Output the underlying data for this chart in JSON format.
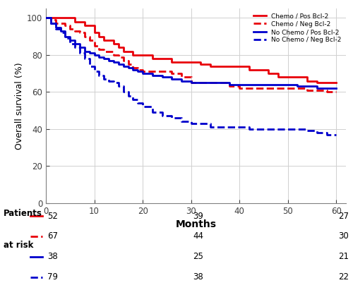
{
  "title": "",
  "xlabel": "Months",
  "ylabel": "Overall survival (%)",
  "xlim": [
    0,
    62
  ],
  "ylim": [
    0,
    105
  ],
  "xticks": [
    0,
    10,
    20,
    30,
    40,
    50,
    60
  ],
  "yticks": [
    0,
    20,
    40,
    60,
    80,
    100
  ],
  "background_color": "#ffffff",
  "grid_color": "#d0d0d0",
  "curves": [
    {
      "label": "Chemo / Pos Bcl-2",
      "color": "#e8000a",
      "linestyle": "solid",
      "linewidth": 2.0,
      "x": [
        0,
        1,
        2,
        3,
        4,
        5,
        6,
        7,
        8,
        9,
        10,
        11,
        12,
        13,
        14,
        15,
        16,
        17,
        18,
        19,
        20,
        22,
        24,
        26,
        28,
        30,
        32,
        34,
        36,
        38,
        40,
        42,
        44,
        46,
        48,
        50,
        52,
        54,
        56,
        58,
        60
      ],
      "y": [
        100,
        100,
        100,
        100,
        100,
        100,
        98,
        98,
        96,
        96,
        92,
        90,
        88,
        88,
        86,
        84,
        82,
        82,
        80,
        80,
        80,
        78,
        78,
        76,
        76,
        76,
        75,
        74,
        74,
        74,
        74,
        72,
        72,
        70,
        68,
        68,
        68,
        66,
        65,
        65,
        65
      ]
    },
    {
      "label": "Chemo / Neg Bcl-2",
      "color": "#e8000a",
      "linestyle": "dashed",
      "linewidth": 2.0,
      "x": [
        0,
        1,
        2,
        3,
        4,
        5,
        6,
        7,
        8,
        9,
        10,
        11,
        12,
        13,
        14,
        15,
        16,
        17,
        18,
        19,
        20,
        22,
        24,
        26,
        28,
        30,
        32,
        34,
        36,
        38,
        40,
        42,
        44,
        46,
        48,
        50,
        52,
        54,
        56,
        58,
        60
      ],
      "y": [
        100,
        99,
        97,
        97,
        96,
        94,
        93,
        92,
        90,
        88,
        85,
        83,
        82,
        82,
        80,
        79,
        77,
        75,
        73,
        72,
        71,
        71,
        71,
        70,
        68,
        65,
        65,
        65,
        65,
        63,
        62,
        62,
        62,
        62,
        62,
        62,
        62,
        61,
        61,
        60,
        60
      ]
    },
    {
      "label": "No Chemo / Pos Bcl-2",
      "color": "#0000cc",
      "linestyle": "solid",
      "linewidth": 2.0,
      "x": [
        0,
        1,
        2,
        3,
        4,
        5,
        6,
        7,
        8,
        9,
        10,
        11,
        12,
        13,
        14,
        15,
        16,
        17,
        18,
        19,
        20,
        22,
        24,
        26,
        28,
        30,
        32,
        34,
        36,
        38,
        40,
        42,
        44,
        46,
        48,
        50,
        52,
        54,
        56,
        58,
        60
      ],
      "y": [
        100,
        97,
        95,
        93,
        90,
        88,
        86,
        84,
        82,
        81,
        80,
        79,
        78,
        77,
        76,
        75,
        74,
        73,
        72,
        71,
        70,
        69,
        68,
        67,
        66,
        65,
        65,
        65,
        65,
        64,
        64,
        64,
        64,
        64,
        64,
        64,
        63,
        63,
        62,
        62,
        62
      ]
    },
    {
      "label": "No Chemo / Neg Bcl-2",
      "color": "#0000cc",
      "linestyle": "dashed",
      "linewidth": 2.0,
      "x": [
        0,
        1,
        2,
        3,
        4,
        5,
        6,
        7,
        8,
        9,
        10,
        11,
        12,
        13,
        14,
        15,
        16,
        17,
        18,
        19,
        20,
        22,
        24,
        26,
        28,
        30,
        32,
        34,
        36,
        38,
        40,
        42,
        44,
        46,
        48,
        50,
        52,
        54,
        56,
        58,
        60
      ],
      "y": [
        100,
        97,
        94,
        92,
        89,
        86,
        84,
        81,
        78,
        74,
        71,
        69,
        67,
        66,
        65,
        63,
        60,
        58,
        56,
        54,
        52,
        49,
        47,
        46,
        44,
        43,
        43,
        41,
        41,
        41,
        41,
        40,
        40,
        40,
        40,
        40,
        40,
        39,
        38,
        37,
        37
      ]
    }
  ],
  "at_risk_data": [
    {
      "label_color": "#e8000a",
      "linestyle": "solid",
      "values": [
        52,
        39,
        27
      ]
    },
    {
      "label_color": "#e8000a",
      "linestyle": "dashed",
      "values": [
        67,
        44,
        30
      ]
    },
    {
      "label_color": "#0000cc",
      "linestyle": "solid",
      "values": [
        38,
        25,
        21
      ]
    },
    {
      "label_color": "#0000cc",
      "linestyle": "dashed",
      "values": [
        79,
        38,
        22
      ]
    }
  ]
}
